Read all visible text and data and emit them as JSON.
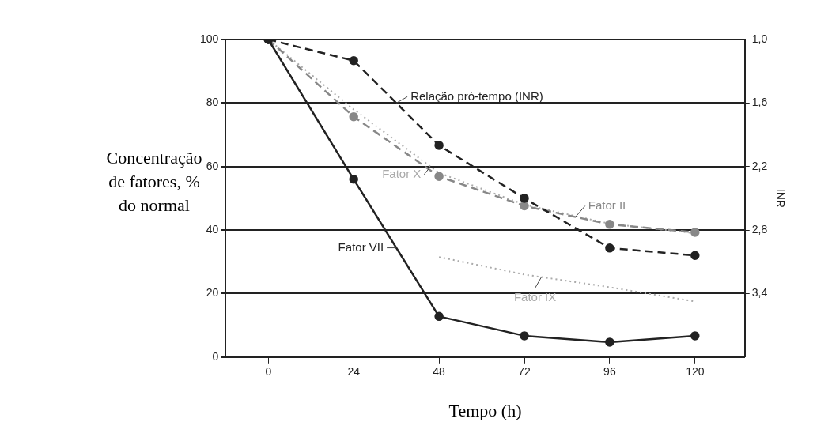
{
  "chart_data": {
    "type": "line",
    "xlabel": "Tempo (h)",
    "ylabel": "Concentração de fatores, % do normal",
    "y2label": "INR",
    "x": [
      0,
      24,
      48,
      72,
      96,
      120
    ],
    "xlim": [
      -12,
      134
    ],
    "xticks": [
      0,
      24,
      48,
      72,
      96,
      120
    ],
    "ylim": [
      0,
      100
    ],
    "yticks": [
      0,
      20,
      40,
      60,
      80,
      100
    ],
    "y2lim": [
      4.0,
      1.0
    ],
    "y2ticks": [
      {
        "value": 1.0,
        "label": "1,0"
      },
      {
        "value": 1.6,
        "label": "1,6"
      },
      {
        "value": 2.2,
        "label": "2,2"
      },
      {
        "value": 2.8,
        "label": "2,8"
      },
      {
        "value": 3.4,
        "label": "3,4"
      }
    ],
    "grid": "y",
    "legend": false,
    "series": [
      {
        "name": "Fator VII",
        "color": "#222222",
        "values": [
          100,
          56,
          12.8,
          6.7,
          4.7,
          6.7
        ],
        "marker": "circle",
        "line_style": "solid"
      },
      {
        "name": "Relação pró-tempo (INR)",
        "color": "#222222",
        "axis": "y2",
        "values": [
          1.0,
          1.2,
          2.0,
          2.5,
          2.97,
          3.04
        ],
        "marker": "circle",
        "line_style": "dashed"
      },
      {
        "name": "Fator II",
        "color": "#888888",
        "values": [
          100,
          75.7,
          56.9,
          47.6,
          41.8,
          39.3
        ],
        "marker": "circle",
        "line_style": "dashed"
      },
      {
        "name": "Fator X",
        "color": "#aaaaaa",
        "values": [
          100,
          78,
          58,
          48,
          42,
          39
        ],
        "marker": "none",
        "line_style": "dotted"
      },
      {
        "name": "Fator IX",
        "color": "#aaaaaa",
        "x": [
          48,
          72,
          96,
          120
        ],
        "values": [
          31.5,
          26,
          22,
          17.5
        ],
        "marker": "none",
        "line_style": "dotted"
      }
    ]
  }
}
